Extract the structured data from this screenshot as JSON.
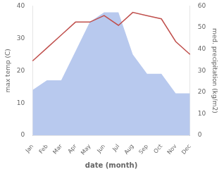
{
  "chart_data": {
    "type": "line",
    "categories": [
      "Jan",
      "Feb",
      "Mar",
      "Apr",
      "May",
      "Jun",
      "Jul",
      "Aug",
      "Sep",
      "Oct",
      "Nov",
      "Dec"
    ],
    "series": [
      {
        "type": "area",
        "color": "#b8c9ee",
        "values": [
          14,
          17,
          17,
          26,
          35,
          38,
          38,
          25,
          19,
          19,
          13,
          13
        ]
      },
      {
        "type": "line",
        "color": "#c0504d",
        "values": [
          23,
          27,
          31,
          35,
          35,
          37,
          34,
          38,
          37,
          36,
          29,
          25
        ]
      }
    ],
    "xlabel": "date (month)",
    "ylabel": "max temp (C)",
    "y2label": "med. precipitation (kg/m2)",
    "ylim": [
      0,
      40
    ],
    "yticks": [
      0,
      10,
      20,
      30,
      40
    ],
    "y2lim": [
      0,
      60
    ],
    "y2ticks": [
      0,
      10,
      20,
      30,
      40,
      50,
      60
    ],
    "grid": false
  }
}
